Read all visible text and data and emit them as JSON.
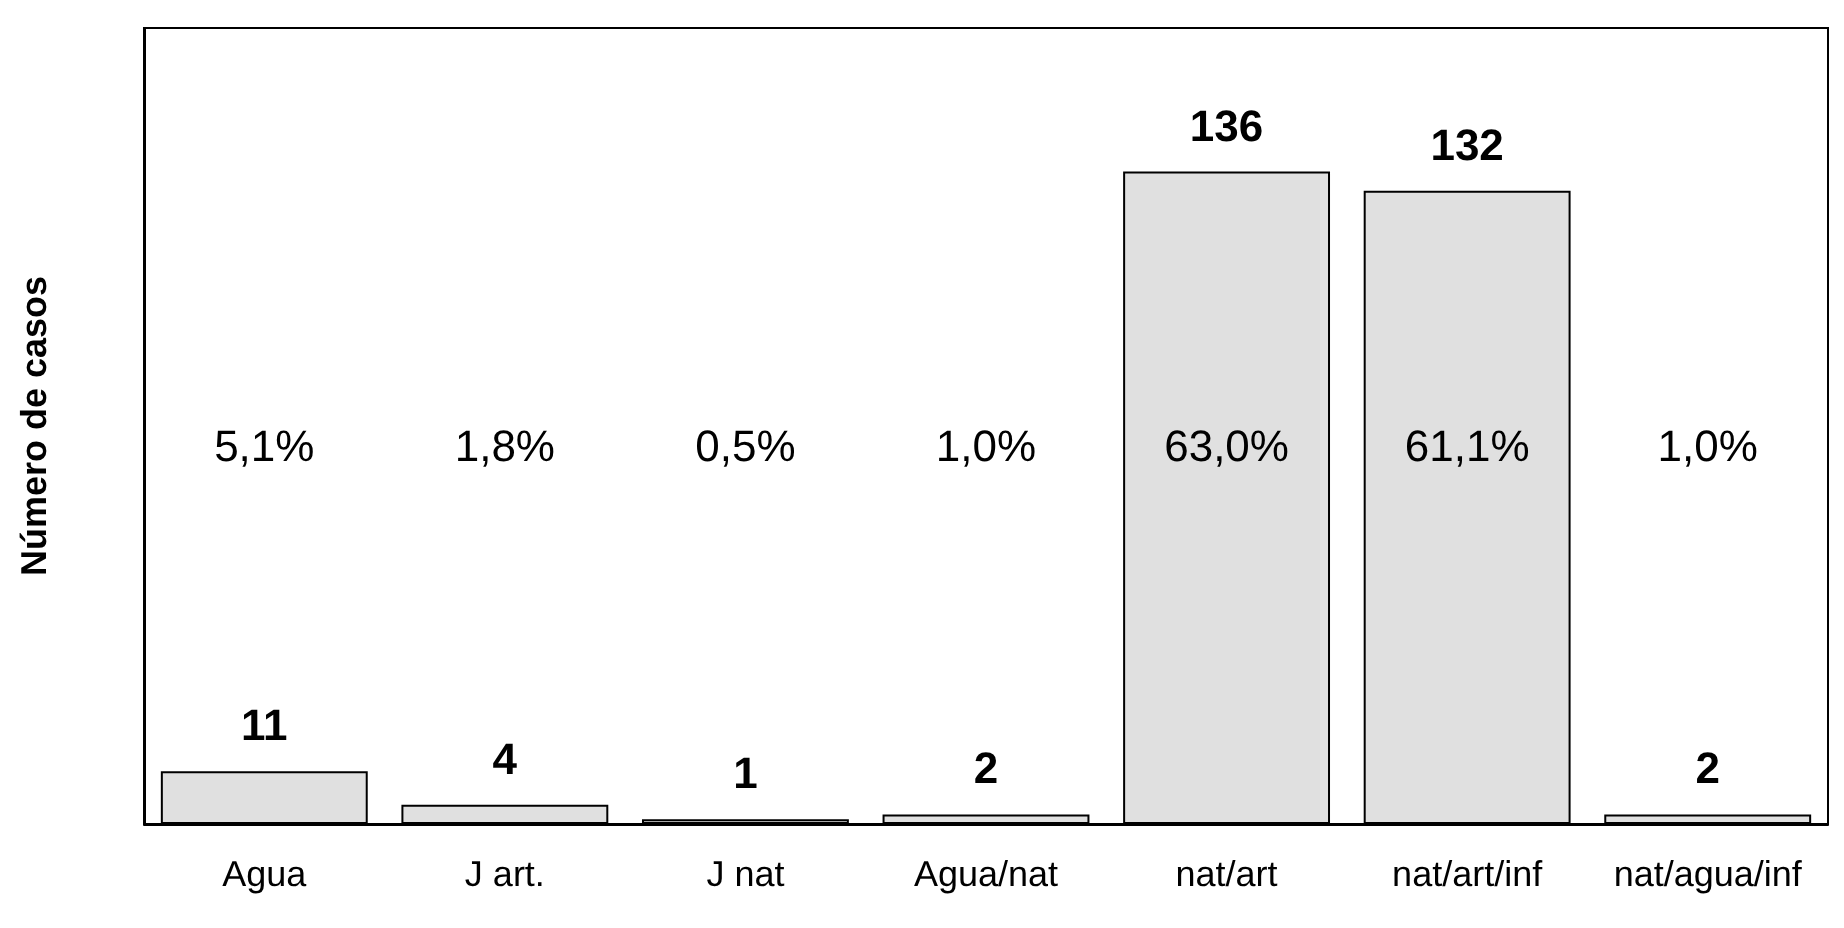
{
  "chart_data": {
    "type": "bar",
    "ylabel": "Número de casos",
    "categories": [
      "Agua",
      "J art.",
      "J nat",
      "Agua/nat",
      "nat/art",
      "nat/art/inf",
      "nat/agua/inf"
    ],
    "values": [
      11,
      4,
      1,
      2,
      136,
      132,
      2
    ],
    "color": "#e0e0e0",
    "data_labels": true,
    "tick_labels": "x",
    "annotations": [
      "5,1%",
      "1,8%",
      "0,5%",
      "1,0%",
      "63,0%",
      "61,1%",
      "1,0%"
    ]
  }
}
